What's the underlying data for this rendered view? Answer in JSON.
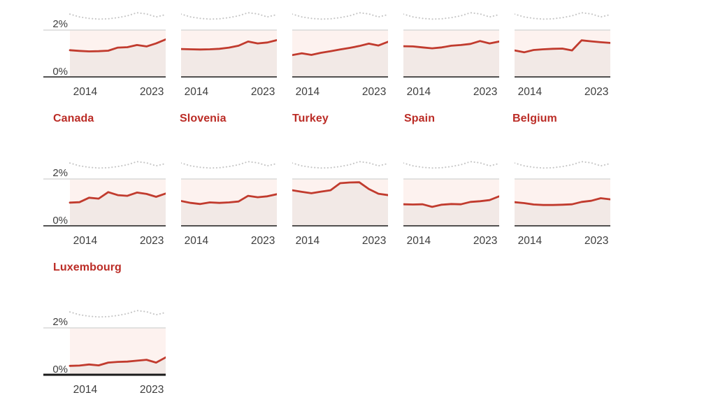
{
  "page": {
    "background": "#ffffff"
  },
  "colors": {
    "country_line": "#c13b2e",
    "band_fill": "#fdf2ef",
    "area_fill": "#f2e9e6",
    "benchmark_dotted": "#c6c6c6",
    "gridline": "#d9d9d9",
    "axis_line": "#1a1a1a",
    "tick_text": "#3d3d3d",
    "title_text": "#bb2c26"
  },
  "chart_data": {
    "type": "line",
    "y_tick_labels": [
      "0%",
      "2%"
    ],
    "x_tick_labels": [
      "2014",
      "2023"
    ],
    "ylim": [
      0,
      3
    ],
    "gridline_value_pct": 2,
    "benchmark": {
      "name": "benchmark-dotted",
      "style": "dotted",
      "values": [
        2.68,
        2.56,
        2.5,
        2.47,
        2.48,
        2.53,
        2.61,
        2.74,
        2.69,
        2.56,
        2.66
      ]
    },
    "charts": [
      {
        "title": "",
        "row": 0,
        "col": 0,
        "show_y_labels": true,
        "values": [
          1.14,
          1.11,
          1.09,
          1.1,
          1.12,
          1.25,
          1.27,
          1.36,
          1.3,
          1.43,
          1.6
        ]
      },
      {
        "title": "",
        "row": 0,
        "col": 1,
        "show_y_labels": false,
        "values": [
          1.19,
          1.18,
          1.17,
          1.18,
          1.2,
          1.25,
          1.33,
          1.51,
          1.43,
          1.47,
          1.57
        ]
      },
      {
        "title": "",
        "row": 0,
        "col": 2,
        "show_y_labels": false,
        "values": [
          0.93,
          1.01,
          0.94,
          1.03,
          1.1,
          1.17,
          1.24,
          1.32,
          1.42,
          1.34,
          1.5
        ]
      },
      {
        "title": "",
        "row": 0,
        "col": 3,
        "show_y_labels": false,
        "values": [
          1.31,
          1.3,
          1.26,
          1.22,
          1.26,
          1.33,
          1.36,
          1.41,
          1.53,
          1.43,
          1.51
        ]
      },
      {
        "title": "",
        "row": 0,
        "col": 4,
        "show_y_labels": false,
        "values": [
          1.13,
          1.05,
          1.15,
          1.18,
          1.2,
          1.21,
          1.13,
          1.56,
          1.52,
          1.48,
          1.45
        ]
      },
      {
        "title": "Canada",
        "row": 1,
        "col": 0,
        "show_y_labels": true,
        "values": [
          0.99,
          1.01,
          1.2,
          1.16,
          1.44,
          1.31,
          1.28,
          1.42,
          1.36,
          1.24,
          1.38
        ]
      },
      {
        "title": "Slovenia",
        "row": 1,
        "col": 1,
        "show_y_labels": false,
        "values": [
          1.06,
          0.98,
          0.93,
          1.0,
          0.98,
          1.0,
          1.04,
          1.28,
          1.22,
          1.26,
          1.35
        ]
      },
      {
        "title": "Turkey",
        "row": 1,
        "col": 2,
        "show_y_labels": false,
        "values": [
          1.52,
          1.45,
          1.39,
          1.46,
          1.52,
          1.82,
          1.85,
          1.86,
          1.57,
          1.37,
          1.31
        ]
      },
      {
        "title": "Spain",
        "row": 1,
        "col": 3,
        "show_y_labels": false,
        "values": [
          0.92,
          0.91,
          0.92,
          0.81,
          0.9,
          0.93,
          0.92,
          1.02,
          1.05,
          1.1,
          1.26
        ]
      },
      {
        "title": "Belgium",
        "row": 1,
        "col": 4,
        "show_y_labels": false,
        "values": [
          1.01,
          0.97,
          0.91,
          0.89,
          0.89,
          0.9,
          0.92,
          1.02,
          1.07,
          1.18,
          1.13
        ]
      },
      {
        "title": "Luxembourg",
        "row": 2,
        "col": 0,
        "show_y_labels": true,
        "thick_axis": true,
        "values": [
          0.38,
          0.39,
          0.44,
          0.4,
          0.52,
          0.55,
          0.56,
          0.6,
          0.64,
          0.52,
          0.74
        ]
      }
    ]
  }
}
